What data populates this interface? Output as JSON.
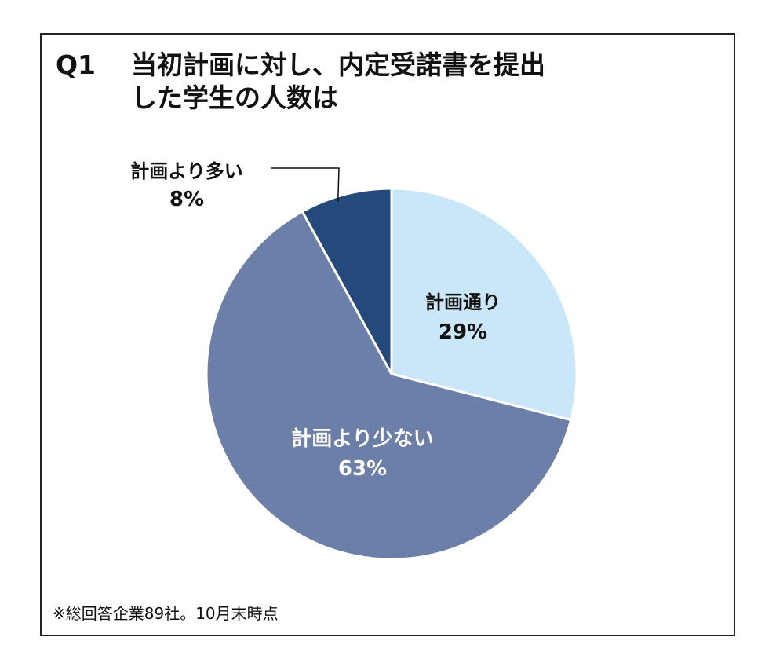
{
  "title": {
    "number": "Q1",
    "line1": "当初計画に対し、内定受諾書を提出",
    "line2": "した学生の人数は"
  },
  "note": "※総回答企業89社。10月末時点",
  "chart_data": {
    "type": "pie",
    "slices": [
      {
        "label": "計画通り",
        "value": 29,
        "value_label": "29%",
        "color": "#c9e7f8",
        "text_color": "#111111"
      },
      {
        "label": "計画より少ない",
        "value": 63,
        "value_label": "63%",
        "color": "#6b7fa8",
        "text_color": "#ffffff"
      },
      {
        "label": "計画より多い",
        "value": 8,
        "value_label": "8%",
        "color": "#234a7a",
        "text_color": "#111111"
      }
    ],
    "start": "12 o'clock",
    "direction": "clockwise"
  }
}
